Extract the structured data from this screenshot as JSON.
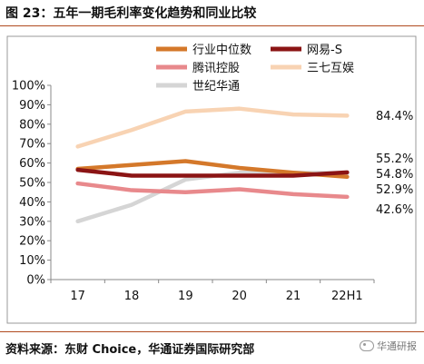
{
  "figure": {
    "title": "图 23：五年一期毛利率变化趋势和同业比较",
    "source": "资料来源：东财 Choice，华通证券国际研究部",
    "watermark": "华通研报",
    "watermark_icon": "wechat-icon"
  },
  "chart_data": {
    "type": "line",
    "categories": [
      "17",
      "18",
      "19",
      "20",
      "21",
      "22H1"
    ],
    "ylim": [
      0,
      100
    ],
    "yticks": [
      0,
      10,
      20,
      30,
      40,
      50,
      60,
      70,
      80,
      90,
      100
    ],
    "ytick_labels": [
      "0%",
      "10%",
      "20%",
      "30%",
      "40%",
      "50%",
      "60%",
      "70%",
      "80%",
      "90%",
      "100%"
    ],
    "grid": false,
    "legend_position": "top",
    "series": [
      {
        "name": "行业中位数",
        "color": "#d4782a",
        "values": [
          57.0,
          59.0,
          61.0,
          57.5,
          55.0,
          52.9
        ],
        "end_label": "52.9%"
      },
      {
        "name": "网易-S",
        "color": "#8b1414",
        "values": [
          56.5,
          53.5,
          53.5,
          53.5,
          53.5,
          55.2
        ],
        "end_label": "55.2%"
      },
      {
        "name": "腾讯控股",
        "color": "#e8898c",
        "values": [
          49.5,
          46.0,
          45.0,
          46.5,
          44.0,
          42.6
        ],
        "end_label": "42.6%"
      },
      {
        "name": "三七互娱",
        "color": "#f8d3b3",
        "values": [
          68.5,
          77.0,
          86.5,
          88.0,
          85.0,
          84.4
        ],
        "end_label": "84.4%"
      },
      {
        "name": "世纪华通",
        "color": "#d5d5d5",
        "values": [
          30.0,
          38.5,
          51.5,
          55.0,
          55.0,
          54.8
        ],
        "end_label": "54.8%"
      }
    ]
  }
}
